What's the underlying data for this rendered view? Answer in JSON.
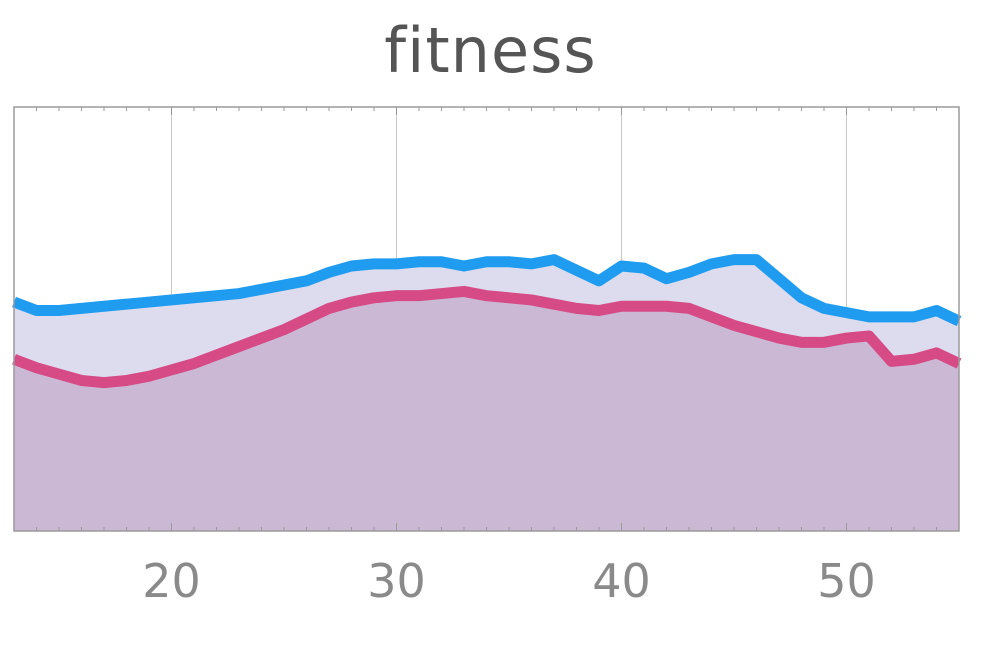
{
  "chart_data": {
    "type": "area",
    "title": "fitness",
    "xlabel": "",
    "ylabel": "",
    "xlim": [
      13,
      55
    ],
    "ylim": [
      0,
      1
    ],
    "xticks": [
      20,
      30,
      40,
      50
    ],
    "grid": "vertical",
    "legend": "none",
    "series": [
      {
        "color": "#1f9cf0",
        "fill": "#dcdcee",
        "x": [
          13,
          14,
          15,
          16,
          17,
          18,
          19,
          20,
          21,
          22,
          23,
          24,
          25,
          26,
          27,
          28,
          29,
          30,
          31,
          32,
          33,
          34,
          35,
          36,
          37,
          38,
          39,
          40,
          41,
          42,
          43,
          44,
          45,
          46,
          47,
          48,
          49,
          50,
          51,
          52,
          53,
          54,
          55
        ],
        "values": [
          0.54,
          0.52,
          0.52,
          0.525,
          0.53,
          0.535,
          0.54,
          0.545,
          0.55,
          0.555,
          0.56,
          0.57,
          0.58,
          0.59,
          0.61,
          0.625,
          0.63,
          0.63,
          0.635,
          0.635,
          0.625,
          0.635,
          0.635,
          0.63,
          0.64,
          0.615,
          0.59,
          0.625,
          0.62,
          0.595,
          0.61,
          0.63,
          0.64,
          0.64,
          0.595,
          0.55,
          0.525,
          0.515,
          0.505,
          0.505,
          0.505,
          0.52,
          0.495
        ]
      },
      {
        "color": "#d64a86",
        "fill": "#cbb8d4",
        "x": [
          13,
          14,
          15,
          16,
          17,
          18,
          19,
          20,
          21,
          22,
          23,
          24,
          25,
          26,
          27,
          28,
          29,
          30,
          31,
          32,
          33,
          34,
          35,
          36,
          37,
          38,
          39,
          40,
          41,
          42,
          43,
          44,
          45,
          46,
          47,
          48,
          49,
          50,
          51,
          52,
          53,
          54,
          55
        ],
        "values": [
          0.405,
          0.385,
          0.37,
          0.355,
          0.35,
          0.355,
          0.365,
          0.38,
          0.395,
          0.415,
          0.435,
          0.455,
          0.475,
          0.5,
          0.525,
          0.54,
          0.55,
          0.555,
          0.555,
          0.56,
          0.565,
          0.555,
          0.55,
          0.545,
          0.535,
          0.525,
          0.52,
          0.53,
          0.53,
          0.53,
          0.525,
          0.505,
          0.485,
          0.47,
          0.455,
          0.445,
          0.445,
          0.455,
          0.46,
          0.4,
          0.405,
          0.42,
          0.395
        ]
      }
    ]
  }
}
